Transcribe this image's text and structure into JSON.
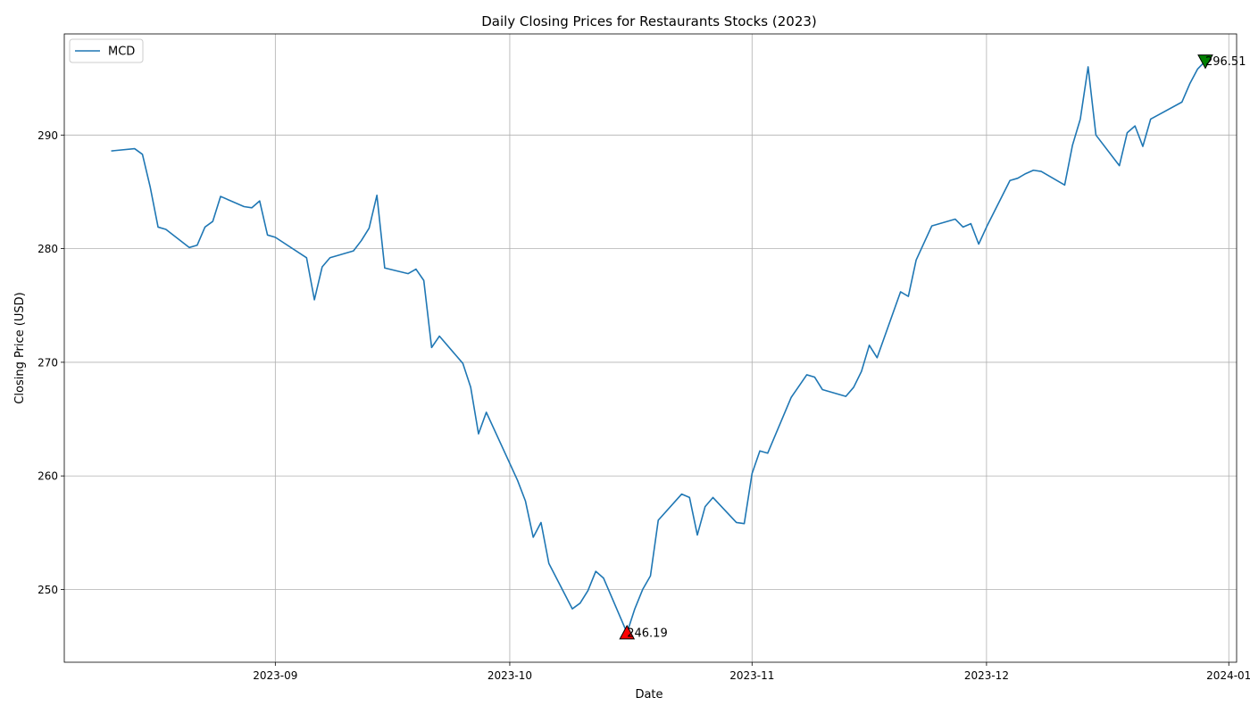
{
  "chart_data": {
    "type": "line",
    "title": "Daily Closing Prices for Restaurants Stocks (2023)",
    "xlabel": "Date",
    "ylabel": "Closing Price (USD)",
    "xlim": [
      "2023-08-05",
      "2024-01-02"
    ],
    "ylim": [
      243.6,
      298.9
    ],
    "x_ticks": [
      {
        "date": "2023-09-01",
        "label": "2023-09"
      },
      {
        "date": "2023-10-01",
        "label": "2023-10"
      },
      {
        "date": "2023-11-01",
        "label": "2023-11"
      },
      {
        "date": "2023-12-01",
        "label": "2023-12"
      },
      {
        "date": "2024-01-01",
        "label": "2024-01"
      }
    ],
    "y_ticks": [
      250,
      260,
      270,
      280,
      290
    ],
    "grid": true,
    "legend_position": "top-left",
    "series": [
      {
        "name": "MCD",
        "color": "#1f77b4",
        "points": [
          [
            "2023-08-11",
            288.6
          ],
          [
            "2023-08-14",
            288.8
          ],
          [
            "2023-08-15",
            288.3
          ],
          [
            "2023-08-16",
            285.4
          ],
          [
            "2023-08-17",
            281.9
          ],
          [
            "2023-08-18",
            281.7
          ],
          [
            "2023-08-21",
            280.1
          ],
          [
            "2023-08-22",
            280.3
          ],
          [
            "2023-08-23",
            281.9
          ],
          [
            "2023-08-24",
            282.4
          ],
          [
            "2023-08-25",
            284.6
          ],
          [
            "2023-08-28",
            283.7
          ],
          [
            "2023-08-29",
            283.6
          ],
          [
            "2023-08-30",
            284.2
          ],
          [
            "2023-08-31",
            281.2
          ],
          [
            "2023-09-01",
            281.0
          ],
          [
            "2023-09-05",
            279.2
          ],
          [
            "2023-09-06",
            275.5
          ],
          [
            "2023-09-07",
            278.4
          ],
          [
            "2023-09-08",
            279.2
          ],
          [
            "2023-09-11",
            279.8
          ],
          [
            "2023-09-12",
            280.7
          ],
          [
            "2023-09-13",
            281.8
          ],
          [
            "2023-09-14",
            284.7
          ],
          [
            "2023-09-15",
            278.3
          ],
          [
            "2023-09-18",
            277.8
          ],
          [
            "2023-09-19",
            278.2
          ],
          [
            "2023-09-20",
            277.2
          ],
          [
            "2023-09-21",
            271.3
          ],
          [
            "2023-09-22",
            272.3
          ],
          [
            "2023-09-25",
            269.9
          ],
          [
            "2023-09-26",
            267.8
          ],
          [
            "2023-09-27",
            263.7
          ],
          [
            "2023-09-28",
            265.6
          ],
          [
            "2023-10-02",
            259.6
          ],
          [
            "2023-10-03",
            257.8
          ],
          [
            "2023-10-04",
            254.6
          ],
          [
            "2023-10-05",
            255.9
          ],
          [
            "2023-10-06",
            252.3
          ],
          [
            "2023-10-09",
            248.3
          ],
          [
            "2023-10-10",
            248.8
          ],
          [
            "2023-10-11",
            249.9
          ],
          [
            "2023-10-12",
            251.6
          ],
          [
            "2023-10-13",
            251.0
          ],
          [
            "2023-10-16",
            246.19
          ],
          [
            "2023-10-17",
            248.3
          ],
          [
            "2023-10-18",
            250.0
          ],
          [
            "2023-10-19",
            251.2
          ],
          [
            "2023-10-20",
            256.1
          ],
          [
            "2023-10-23",
            258.4
          ],
          [
            "2023-10-24",
            258.1
          ],
          [
            "2023-10-25",
            254.8
          ],
          [
            "2023-10-26",
            257.3
          ],
          [
            "2023-10-27",
            258.1
          ],
          [
            "2023-10-30",
            255.9
          ],
          [
            "2023-10-31",
            255.8
          ],
          [
            "2023-11-01",
            260.2
          ],
          [
            "2023-11-02",
            262.2
          ],
          [
            "2023-11-03",
            262.0
          ],
          [
            "2023-11-06",
            266.9
          ],
          [
            "2023-11-07",
            267.9
          ],
          [
            "2023-11-08",
            268.9
          ],
          [
            "2023-11-09",
            268.7
          ],
          [
            "2023-11-10",
            267.6
          ],
          [
            "2023-11-13",
            267.0
          ],
          [
            "2023-11-14",
            267.8
          ],
          [
            "2023-11-15",
            269.2
          ],
          [
            "2023-11-16",
            271.5
          ],
          [
            "2023-11-17",
            270.4
          ],
          [
            "2023-11-20",
            276.2
          ],
          [
            "2023-11-21",
            275.8
          ],
          [
            "2023-11-22",
            279.0
          ],
          [
            "2023-11-24",
            282.0
          ],
          [
            "2023-11-27",
            282.6
          ],
          [
            "2023-11-28",
            281.9
          ],
          [
            "2023-11-29",
            282.2
          ],
          [
            "2023-11-30",
            280.4
          ],
          [
            "2023-12-01",
            281.9
          ],
          [
            "2023-12-04",
            286.0
          ],
          [
            "2023-12-05",
            286.2
          ],
          [
            "2023-12-06",
            286.6
          ],
          [
            "2023-12-07",
            286.9
          ],
          [
            "2023-12-08",
            286.8
          ],
          [
            "2023-12-11",
            285.6
          ],
          [
            "2023-12-12",
            289.1
          ],
          [
            "2023-12-13",
            291.4
          ],
          [
            "2023-12-14",
            296.0
          ],
          [
            "2023-12-15",
            290.0
          ],
          [
            "2023-12-18",
            287.3
          ],
          [
            "2023-12-19",
            290.2
          ],
          [
            "2023-12-20",
            290.8
          ],
          [
            "2023-12-21",
            289.0
          ],
          [
            "2023-12-22",
            291.4
          ],
          [
            "2023-12-26",
            292.9
          ],
          [
            "2023-12-27",
            294.5
          ],
          [
            "2023-12-28",
            295.8
          ],
          [
            "2023-12-29",
            296.51
          ]
        ]
      }
    ],
    "annotations": [
      {
        "label": "246.19",
        "date": "2023-10-16",
        "value": 246.19,
        "marker": "triangle-up",
        "color": "#ff0000",
        "kind": "min"
      },
      {
        "label": "296.51",
        "date": "2023-12-29",
        "value": 296.51,
        "marker": "triangle-down",
        "color": "#008000",
        "kind": "max"
      }
    ]
  }
}
